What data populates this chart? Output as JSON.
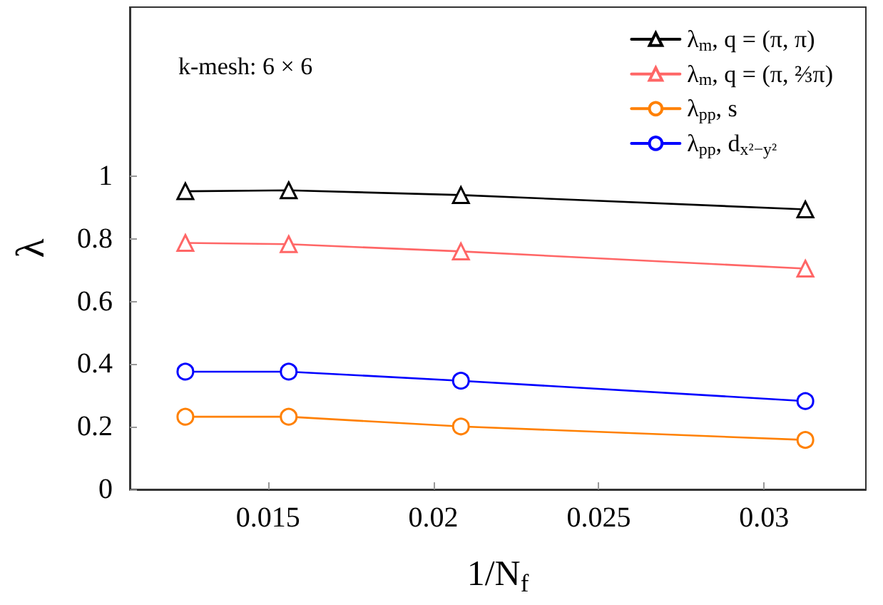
{
  "chart_data": {
    "type": "line",
    "xlabel": "1/N$_{f}$",
    "ylabel": "λ",
    "annotations": [
      "k-mesh: 6 × 6"
    ],
    "x": [
      0.0125,
      0.015625,
      0.020833,
      0.03125
    ],
    "series": [
      {
        "name": "λ$_{m}$, q = (π, π)",
        "color": "#000000",
        "marker": "triangle",
        "values": [
          0.952,
          0.955,
          0.94,
          0.894
        ]
      },
      {
        "name": "λ$_{m}$, q = (π, ⅔π)",
        "color": "#ff6666",
        "marker": "triangle",
        "values": [
          0.787,
          0.783,
          0.76,
          0.705
        ]
      },
      {
        "name": "λ$_{pp}$, s",
        "color": "#ff8000",
        "marker": "circle",
        "values": [
          0.232,
          0.232,
          0.201,
          0.158
        ]
      },
      {
        "name": "λ$_{pp}$, d$_{x²−y²}$",
        "color": "#0000ff",
        "marker": "circle",
        "values": [
          0.376,
          0.376,
          0.347,
          0.282
        ]
      }
    ],
    "xlim": [
      0.01082,
      0.03308
    ],
    "xticks": [
      0.015,
      0.02,
      0.025,
      0.03
    ],
    "ylim": [
      0,
      1.54
    ],
    "yticks": [
      0,
      0.2,
      0.4,
      0.6,
      0.8,
      1
    ],
    "grid": false,
    "legend": "top right",
    "line_style": "solid"
  }
}
